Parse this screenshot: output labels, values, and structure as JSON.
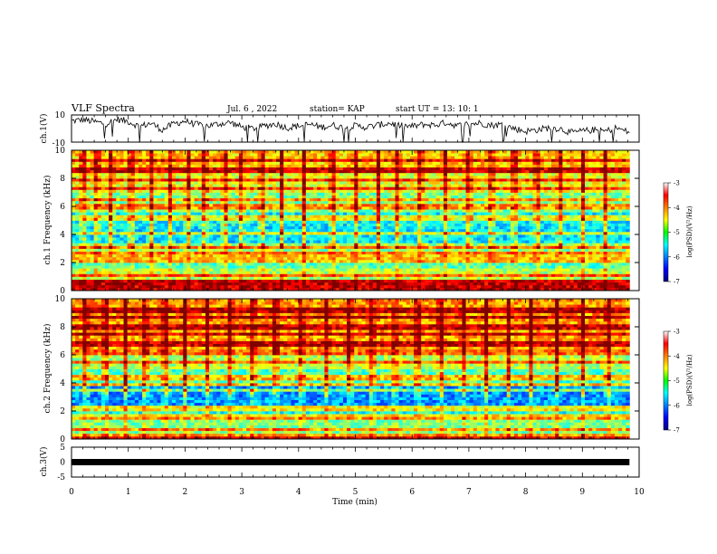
{
  "header": {
    "title": "VLF Spectra",
    "date": "Jul. 6 , 2022",
    "station": "station= KAP",
    "start": "start UT = 13: 10: 1"
  },
  "chart_data": [
    {
      "type": "line",
      "name": "ch1-waveform",
      "ylabel": "ch.1(V)",
      "ylim": [
        -10,
        10
      ],
      "yticks": [
        "10",
        "-10"
      ],
      "x_range_min": [
        0,
        9.83
      ],
      "points": [
        [
          0.0,
          5.5
        ],
        [
          0.2,
          6.5
        ],
        [
          0.4,
          5.0
        ],
        [
          0.6,
          3.5
        ],
        [
          0.8,
          6.8
        ],
        [
          1.0,
          5.2
        ],
        [
          1.2,
          1.5
        ],
        [
          1.4,
          4.0
        ],
        [
          1.6,
          -1.0
        ],
        [
          1.8,
          3.5
        ],
        [
          2.0,
          5.5
        ],
        [
          2.2,
          3.0
        ],
        [
          2.4,
          2.0
        ],
        [
          2.6,
          3.5
        ],
        [
          2.8,
          4.5
        ],
        [
          3.0,
          1.0
        ],
        [
          3.2,
          0.0
        ],
        [
          3.4,
          2.0
        ],
        [
          3.6,
          3.5
        ],
        [
          3.8,
          0.5
        ],
        [
          4.0,
          2.0
        ],
        [
          4.2,
          3.0
        ],
        [
          4.4,
          1.0
        ],
        [
          4.6,
          2.5
        ],
        [
          4.8,
          0.5
        ],
        [
          5.0,
          2.0
        ],
        [
          5.2,
          1.0
        ],
        [
          5.4,
          2.5
        ],
        [
          5.6,
          4.0
        ],
        [
          5.8,
          2.0
        ],
        [
          6.0,
          1.5
        ],
        [
          6.2,
          3.0
        ],
        [
          6.4,
          2.5
        ],
        [
          6.6,
          4.5
        ],
        [
          6.8,
          2.0
        ],
        [
          7.0,
          3.5
        ],
        [
          7.2,
          4.0
        ],
        [
          7.4,
          2.5
        ],
        [
          7.6,
          3.0
        ],
        [
          7.8,
          0.0
        ],
        [
          8.0,
          -2.0
        ],
        [
          8.2,
          -1.0
        ],
        [
          8.4,
          0.5
        ],
        [
          8.6,
          0.0
        ],
        [
          8.8,
          -3.0
        ],
        [
          9.0,
          -2.0
        ],
        [
          9.2,
          -1.0
        ],
        [
          9.4,
          -2.0
        ],
        [
          9.6,
          0.5
        ],
        [
          9.83,
          -3.0
        ]
      ]
    },
    {
      "type": "heatmap",
      "name": "ch1-spectrogram",
      "ylabel": "ch.1 Frequency (kHz)",
      "ylim": [
        0,
        10
      ],
      "yticks": [
        "0",
        "2",
        "4",
        "6",
        "8",
        "10"
      ],
      "colorbar": {
        "label": "log(PSD)(V²/Hz)",
        "range": [
          -7,
          -3
        ],
        "ticks": [
          "-3",
          "-4",
          "-5",
          "-6",
          "-7"
        ]
      },
      "bands": [
        {
          "f0": 0.0,
          "f1": 0.3,
          "v": -3.3
        },
        {
          "f0": 0.3,
          "f1": 0.8,
          "v": -4.2
        },
        {
          "f0": 0.8,
          "f1": 1.6,
          "v": -4.8
        },
        {
          "f0": 1.6,
          "f1": 2.6,
          "v": -5.2
        },
        {
          "f0": 2.6,
          "f1": 3.4,
          "v": -4.9
        },
        {
          "f0": 3.4,
          "f1": 4.6,
          "v": -5.6
        },
        {
          "f0": 4.6,
          "f1": 5.6,
          "v": -5.5
        },
        {
          "f0": 5.6,
          "f1": 7.0,
          "v": -5.0
        },
        {
          "f0": 7.0,
          "f1": 8.5,
          "v": -4.6
        },
        {
          "f0": 8.5,
          "f1": 10.0,
          "v": -4.3
        }
      ],
      "tones_khz": [
        0.3,
        0.6,
        1.1,
        2.2,
        2.6,
        3.1,
        4.1,
        5.2,
        6.0,
        6.5,
        7.3,
        7.9,
        8.6,
        9.3
      ],
      "bursts_min": [
        0.2,
        0.45,
        0.7,
        1.05,
        1.4,
        1.75,
        2.05,
        2.35,
        2.7,
        3.0,
        3.35,
        3.7,
        4.1,
        4.6,
        5.0,
        5.4,
        5.75,
        6.15,
        6.6,
        7.0,
        7.4,
        7.8,
        8.2,
        8.6,
        9.0,
        9.4
      ]
    },
    {
      "type": "heatmap",
      "name": "ch2-spectrogram",
      "ylabel": "ch.2 Frequency (kHz)",
      "ylim": [
        0,
        10
      ],
      "yticks": [
        "0",
        "2",
        "4",
        "6",
        "8",
        "10"
      ],
      "colorbar": {
        "label": "log(PSD)(V²/Hz)",
        "range": [
          -7,
          -3
        ],
        "ticks": [
          "-3",
          "-4",
          "-5",
          "-6",
          "-7"
        ]
      },
      "bands": [
        {
          "f0": 0.0,
          "f1": 0.3,
          "v": -3.4
        },
        {
          "f0": 0.3,
          "f1": 1.6,
          "v": -5.0
        },
        {
          "f0": 1.6,
          "f1": 2.4,
          "v": -5.4
        },
        {
          "f0": 2.4,
          "f1": 3.8,
          "v": -5.9
        },
        {
          "f0": 3.8,
          "f1": 5.0,
          "v": -5.2
        },
        {
          "f0": 5.0,
          "f1": 6.4,
          "v": -4.8
        },
        {
          "f0": 6.4,
          "f1": 8.4,
          "v": -4.2
        },
        {
          "f0": 8.4,
          "f1": 10.0,
          "v": -4.1
        }
      ],
      "tones_khz": [
        0.3,
        0.7,
        1.6,
        2.2,
        3.5,
        3.9,
        4.4,
        5.5,
        6.2,
        6.8,
        7.5,
        8.0,
        8.7,
        9.2
      ],
      "bursts_min": [
        0.25,
        0.6,
        0.95,
        1.3,
        1.65,
        2.0,
        2.4,
        2.8,
        3.2,
        3.6,
        4.05,
        4.5,
        4.9,
        5.3,
        5.7,
        6.1,
        6.5,
        6.9,
        7.3,
        7.7,
        8.1,
        8.55,
        9.0,
        9.45
      ]
    },
    {
      "type": "line",
      "name": "ch3-waveform",
      "ylabel": "ch.3(V)",
      "ylim": [
        -5,
        5
      ],
      "yticks": [
        "5",
        "0",
        "-5"
      ],
      "points": [
        [
          0.0,
          0.0
        ],
        [
          9.83,
          0.0
        ]
      ]
    }
  ],
  "xaxis": {
    "label": "Time (min)",
    "range": [
      0,
      10
    ],
    "ticks": [
      "0",
      "1",
      "2",
      "3",
      "4",
      "5",
      "6",
      "7",
      "8",
      "9",
      "10"
    ]
  }
}
